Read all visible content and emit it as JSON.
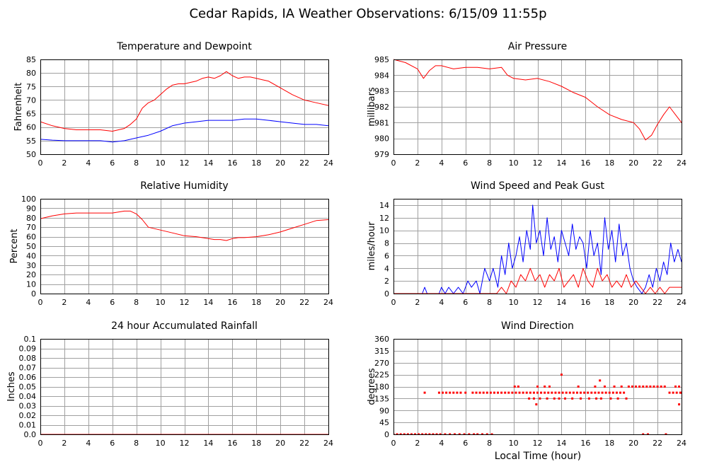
{
  "page": {
    "title": "Cedar Rapids, IA Weather Observations: 6/15/09 11:55p",
    "x_axis_label": "Local Time (hour)"
  },
  "colors": {
    "series_red": "#ff0000",
    "series_blue": "#0000ff",
    "grid": "#a0a0a0"
  },
  "chart_data": [
    {
      "id": "temperature",
      "type": "line",
      "title": "Temperature and Dewpoint",
      "ylabel": "Fahrenheit",
      "xlabel": "",
      "xlim": [
        0,
        24
      ],
      "ylim": [
        50,
        85
      ],
      "xticks": [
        0,
        2,
        4,
        6,
        8,
        10,
        12,
        14,
        16,
        18,
        20,
        22,
        24
      ],
      "yticks": [
        50,
        55,
        60,
        65,
        70,
        75,
        80,
        85
      ],
      "ytick_labels": [
        "50",
        "55",
        "60",
        "65",
        "70",
        "75",
        "80",
        "85"
      ],
      "grid": true,
      "series": [
        {
          "color": "#ff0000",
          "x": [
            0,
            1,
            2,
            3,
            4,
            5,
            6,
            7,
            7.5,
            8,
            8.5,
            9,
            9.5,
            10,
            10.5,
            11,
            11.5,
            12,
            12.5,
            13,
            13.5,
            14,
            14.5,
            15,
            15.5,
            16,
            16.5,
            17,
            17.5,
            18,
            18.5,
            19,
            20,
            21,
            22,
            23,
            24
          ],
          "y": [
            62,
            60.5,
            59.5,
            59,
            59,
            59,
            58.5,
            59.5,
            61,
            63,
            67,
            69,
            70,
            72,
            74,
            75.5,
            76,
            76,
            76.5,
            77,
            78,
            78.5,
            78,
            79,
            80.5,
            79,
            78,
            78.5,
            78.5,
            78,
            77.5,
            77,
            74.5,
            72,
            70,
            69,
            68
          ]
        },
        {
          "color": "#0000ff",
          "x": [
            0,
            1,
            2,
            3,
            4,
            5,
            6,
            7,
            8,
            9,
            10,
            11,
            12,
            13,
            14,
            15,
            16,
            17,
            18,
            19,
            20,
            21,
            22,
            23,
            24
          ],
          "y": [
            55.5,
            55.2,
            55,
            55,
            55,
            55,
            54.5,
            55,
            56,
            57,
            58.5,
            60.5,
            61.5,
            62,
            62.5,
            62.5,
            62.5,
            63,
            63,
            62.5,
            62,
            61.5,
            61,
            61,
            60.5
          ]
        }
      ]
    },
    {
      "id": "pressure",
      "type": "line",
      "title": "Air Pressure",
      "ylabel": "millibars",
      "xlabel": "",
      "xlim": [
        0,
        24
      ],
      "ylim": [
        979,
        985
      ],
      "xticks": [
        0,
        2,
        4,
        6,
        8,
        10,
        12,
        14,
        16,
        18,
        20,
        22,
        24
      ],
      "yticks": [
        979,
        980,
        981,
        982,
        983,
        984,
        985
      ],
      "ytick_labels": [
        "979",
        "980",
        "981",
        "982",
        "983",
        "984",
        "985"
      ],
      "grid": true,
      "series": [
        {
          "color": "#ff0000",
          "x": [
            0,
            1,
            2,
            2.5,
            3,
            3.5,
            4,
            5,
            6,
            7,
            8,
            9,
            9.5,
            10,
            11,
            12,
            13,
            14,
            15,
            16,
            17,
            18,
            19,
            20,
            20.5,
            21,
            21.5,
            22,
            22.5,
            23,
            23.5,
            24
          ],
          "y": [
            985,
            984.8,
            984.4,
            983.8,
            984.3,
            984.6,
            984.6,
            984.4,
            984.5,
            984.5,
            984.4,
            984.5,
            984.0,
            983.8,
            983.7,
            983.8,
            983.6,
            983.3,
            982.9,
            982.6,
            982.0,
            981.5,
            981.2,
            981.0,
            980.6,
            979.9,
            980.2,
            980.9,
            981.5,
            982.0,
            981.5,
            981.0
          ]
        }
      ]
    },
    {
      "id": "humidity",
      "type": "line",
      "title": "Relative Humidity",
      "ylabel": "Percent",
      "xlabel": "",
      "xlim": [
        0,
        24
      ],
      "ylim": [
        0,
        100
      ],
      "xticks": [
        0,
        2,
        4,
        6,
        8,
        10,
        12,
        14,
        16,
        18,
        20,
        22,
        24
      ],
      "yticks": [
        0,
        10,
        20,
        30,
        40,
        50,
        60,
        70,
        80,
        90,
        100
      ],
      "ytick_labels": [
        "0",
        "10",
        "20",
        "30",
        "40",
        "50",
        "60",
        "70",
        "80",
        "90",
        "100"
      ],
      "grid": true,
      "series": [
        {
          "color": "#ff0000",
          "x": [
            0,
            1,
            2,
            3,
            4,
            5,
            6,
            6.5,
            7,
            7.5,
            8,
            8.5,
            9,
            10,
            11,
            12,
            13,
            14,
            14.5,
            15,
            15.5,
            16,
            16.5,
            17,
            18,
            19,
            20,
            21,
            22,
            23,
            24
          ],
          "y": [
            79,
            82,
            84,
            85,
            85,
            85,
            85,
            86,
            87,
            87,
            84,
            78,
            70,
            67,
            64,
            61,
            60,
            58,
            57,
            57,
            56,
            58,
            59,
            59,
            60,
            62,
            65,
            69,
            73,
            77,
            78
          ]
        }
      ]
    },
    {
      "id": "wind",
      "type": "line",
      "title": "Wind Speed and Peak Gust",
      "ylabel": "miles/hour",
      "xlabel": "",
      "xlim": [
        0,
        24
      ],
      "ylim": [
        0,
        15
      ],
      "xticks": [
        0,
        2,
        4,
        6,
        8,
        10,
        12,
        14,
        16,
        18,
        20,
        22,
        24
      ],
      "yticks": [
        0,
        2,
        4,
        6,
        8,
        10,
        12,
        14
      ],
      "ytick_labels": [
        "0",
        "2",
        "4",
        "6",
        "8",
        "10",
        "12",
        "14"
      ],
      "grid": true,
      "series": [
        {
          "color": "#0000ff",
          "x": [
            0,
            2.4,
            2.6,
            2.8,
            3.8,
            4.0,
            4.3,
            4.6,
            5.0,
            5.4,
            5.8,
            6.2,
            6.5,
            6.9,
            7.2,
            7.6,
            8.0,
            8.3,
            8.7,
            9.0,
            9.3,
            9.6,
            9.9,
            10.2,
            10.5,
            10.8,
            11.1,
            11.4,
            11.6,
            11.9,
            12.2,
            12.5,
            12.8,
            13.1,
            13.4,
            13.7,
            14.0,
            14.3,
            14.6,
            14.9,
            15.2,
            15.5,
            15.8,
            16.1,
            16.4,
            16.7,
            17.0,
            17.3,
            17.6,
            17.9,
            18.2,
            18.5,
            18.8,
            19.1,
            19.4,
            19.7,
            20.0,
            20.3,
            20.7,
            21.0,
            21.3,
            21.6,
            21.9,
            22.2,
            22.5,
            22.8,
            23.1,
            23.4,
            23.7,
            24
          ],
          "y": [
            0,
            0,
            1,
            0,
            0,
            1,
            0,
            1,
            0,
            1,
            0,
            2,
            1,
            2,
            0,
            4,
            2,
            4,
            1,
            6,
            3,
            8,
            4,
            6,
            9,
            5,
            10,
            7,
            14,
            8,
            10,
            6,
            12,
            7,
            9,
            5,
            10,
            8,
            6,
            11,
            7,
            9,
            8,
            4,
            10,
            6,
            8,
            3,
            12,
            7,
            10,
            5,
            11,
            6,
            8,
            4,
            2,
            1,
            0,
            1,
            3,
            1,
            4,
            2,
            5,
            3,
            8,
            5,
            7,
            5
          ]
        },
        {
          "color": "#ff0000",
          "x": [
            0,
            8.6,
            9.0,
            9.4,
            9.8,
            10.2,
            10.6,
            11.0,
            11.4,
            11.8,
            12.2,
            12.6,
            13.0,
            13.4,
            13.8,
            14.2,
            14.6,
            15.0,
            15.4,
            15.8,
            16.2,
            16.6,
            17.0,
            17.4,
            17.8,
            18.2,
            18.6,
            19.0,
            19.4,
            19.8,
            20.2,
            20.6,
            21.0,
            21.4,
            21.8,
            22.2,
            22.6,
            23.0,
            23.4,
            24
          ],
          "y": [
            0,
            0,
            1,
            0,
            2,
            1,
            3,
            2,
            4,
            2,
            3,
            1,
            3,
            2,
            4,
            1,
            2,
            3,
            1,
            4,
            2,
            1,
            4,
            2,
            3,
            1,
            2,
            1,
            3,
            1,
            2,
            1,
            0,
            1,
            0,
            1,
            0,
            1,
            1,
            1
          ]
        }
      ]
    },
    {
      "id": "rainfall",
      "type": "line",
      "title": "24 hour Accumulated Rainfall",
      "ylabel": "Inches",
      "xlabel": "",
      "xlim": [
        0,
        24
      ],
      "ylim": [
        0,
        0.1
      ],
      "xticks": [
        0,
        2,
        4,
        6,
        8,
        10,
        12,
        14,
        16,
        18,
        20,
        22,
        24
      ],
      "yticks": [
        0,
        0.01,
        0.02,
        0.03,
        0.04,
        0.05,
        0.06,
        0.07,
        0.08,
        0.09,
        0.1
      ],
      "ytick_labels": [
        "0.0",
        "0.01",
        "0.02",
        "0.03",
        "0.04",
        "0.05",
        "0.06",
        "0.07",
        "0.08",
        "0.09",
        "0.1"
      ],
      "grid": true,
      "series": [
        {
          "color": "#ff0000",
          "x": [
            0,
            24
          ],
          "y": [
            0,
            0
          ]
        }
      ]
    },
    {
      "id": "direction",
      "type": "scatter",
      "title": "Wind Direction",
      "ylabel": "degrees",
      "xlabel": "Local Time (hour)",
      "xlim": [
        0,
        24
      ],
      "ylim": [
        0,
        360
      ],
      "xticks": [
        0,
        2,
        4,
        6,
        8,
        10,
        12,
        14,
        16,
        18,
        20,
        22,
        24
      ],
      "yticks": [
        0,
        45,
        90,
        135,
        180,
        225,
        270,
        315,
        360
      ],
      "ytick_labels": [
        "0",
        "45",
        "90",
        "135",
        "180",
        "225",
        "270",
        "315",
        "360"
      ],
      "grid": true,
      "series": [
        {
          "color": "#ff0000",
          "x": [
            0,
            0.3,
            0.6,
            0.9,
            1.2,
            1.5,
            1.8,
            2.1,
            2.4,
            2.7,
            3.0,
            3.3,
            3.6,
            3.9,
            4.3,
            4.7,
            5.1,
            5.5,
            5.9,
            6.3,
            6.7,
            7.0,
            7.4,
            7.8,
            8.2,
            2.6,
            3.8,
            4.1,
            4.4,
            4.7,
            5.0,
            5.3,
            5.6,
            6.0,
            6.6,
            6.9,
            7.2,
            7.5,
            7.8,
            8.1,
            8.4,
            8.7,
            9.0,
            9.3,
            9.6,
            9.9,
            10.2,
            10.5,
            10.8,
            11.1,
            11.4,
            11.7,
            12.0,
            12.3,
            12.6,
            12.9,
            13.2,
            13.5,
            13.8,
            14.1,
            14.4,
            14.7,
            15.0,
            15.3,
            15.6,
            15.9,
            16.2,
            16.5,
            16.8,
            17.1,
            17.4,
            17.7,
            18.0,
            18.3,
            18.6,
            18.9,
            19.2,
            10.1,
            10.4,
            12.0,
            12.6,
            13.0,
            15.4,
            16.8,
            17.6,
            18.4,
            19.0,
            19.6,
            19.9,
            20.2,
            20.5,
            20.8,
            21.1,
            21.4,
            21.7,
            22.0,
            22.3,
            22.6,
            23.5,
            23.8,
            11.3,
            11.7,
            11.9,
            12.2,
            12.8,
            13.4,
            13.8,
            14.3,
            14.9,
            15.6,
            16.3,
            16.9,
            17.3,
            18.1,
            18.7,
            19.4,
            14.0,
            17.2,
            20.8,
            21.2,
            22.7,
            23.0,
            23.3,
            23.6,
            23.9,
            23.8,
            24.0
          ],
          "y": [
            0,
            0,
            0,
            0,
            0,
            0,
            0,
            0,
            0,
            0,
            0,
            0,
            0,
            0,
            0,
            0,
            0,
            0,
            0,
            0,
            0,
            0,
            0,
            0,
            0,
            157,
            157,
            157,
            157,
            157,
            157,
            157,
            157,
            157,
            157,
            157,
            157,
            157,
            157,
            157,
            157,
            157,
            157,
            157,
            157,
            157,
            157,
            157,
            157,
            157,
            157,
            157,
            157,
            157,
            157,
            157,
            157,
            157,
            157,
            157,
            157,
            157,
            157,
            157,
            157,
            157,
            157,
            157,
            157,
            157,
            157,
            157,
            157,
            157,
            157,
            157,
            157,
            180,
            180,
            180,
            180,
            180,
            180,
            180,
            180,
            180,
            180,
            180,
            180,
            180,
            180,
            180,
            180,
            180,
            180,
            180,
            180,
            180,
            180,
            180,
            135,
            135,
            113,
            135,
            135,
            135,
            135,
            135,
            135,
            135,
            135,
            135,
            135,
            135,
            135,
            135,
            225,
            203,
            0,
            0,
            0,
            157,
            157,
            157,
            157,
            113,
            157
          ]
        }
      ]
    }
  ]
}
